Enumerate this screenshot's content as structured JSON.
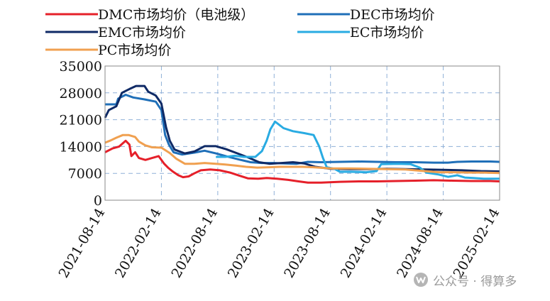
{
  "chart_data": {
    "type": "line",
    "title": "",
    "xlabel": "",
    "ylabel": "",
    "ylim": [
      0,
      35000
    ],
    "yticks": [
      0,
      7000,
      14000,
      21000,
      28000,
      35000
    ],
    "x_tick_labels": [
      "2021-08-14",
      "2022-02-14",
      "2022-08-14",
      "2023-02-14",
      "2023-08-14",
      "2024-02-14",
      "2024-08-14",
      "2025-02-14"
    ],
    "x_range_months": [
      0,
      42
    ],
    "x_unit": "months since 2021-08-14",
    "grid": true,
    "series": [
      {
        "name": "DMC市场均价（电池级）",
        "color": "#e5202a",
        "points": [
          [
            0,
            12500
          ],
          [
            0.8,
            13500
          ],
          [
            1.5,
            14000
          ],
          [
            2.2,
            15500
          ],
          [
            2.6,
            14500
          ],
          [
            2.8,
            11500
          ],
          [
            3.2,
            12500
          ],
          [
            3.6,
            11000
          ],
          [
            4.3,
            10500
          ],
          [
            5,
            11000
          ],
          [
            5.7,
            11500
          ],
          [
            6.3,
            9500
          ],
          [
            6.7,
            8500
          ],
          [
            7.2,
            7500
          ],
          [
            7.8,
            6500
          ],
          [
            8.3,
            6000
          ],
          [
            8.9,
            6200
          ],
          [
            9.5,
            7000
          ],
          [
            10.2,
            7800
          ],
          [
            11.2,
            8000
          ],
          [
            12.2,
            7800
          ],
          [
            13.3,
            7200
          ],
          [
            14.3,
            6400
          ],
          [
            15.2,
            5700
          ],
          [
            16.3,
            5600
          ],
          [
            17.2,
            5800
          ],
          [
            18.3,
            5600
          ],
          [
            19.5,
            5300
          ],
          [
            20.6,
            4900
          ],
          [
            21.6,
            4600
          ],
          [
            23,
            4600
          ],
          [
            25,
            4800
          ],
          [
            27,
            4900
          ],
          [
            29,
            4900
          ],
          [
            31,
            5000
          ],
          [
            33,
            5100
          ],
          [
            35,
            5200
          ],
          [
            37,
            5100
          ],
          [
            39,
            5000
          ],
          [
            41,
            5000
          ],
          [
            42,
            4900
          ]
        ]
      },
      {
        "name": "DEC市场均价",
        "color": "#1f6fb8",
        "points": [
          [
            0,
            25000
          ],
          [
            1.2,
            25000
          ],
          [
            1.4,
            26500
          ],
          [
            2.2,
            27500
          ],
          [
            3,
            26800
          ],
          [
            4.2,
            26300
          ],
          [
            5.4,
            25700
          ],
          [
            6,
            23500
          ],
          [
            6.4,
            17000
          ],
          [
            6.8,
            14500
          ],
          [
            7.3,
            12500
          ],
          [
            8.2,
            11900
          ],
          [
            9.5,
            12400
          ],
          [
            10.6,
            12900
          ],
          [
            11.8,
            12200
          ],
          [
            13,
            11400
          ],
          [
            14.3,
            10600
          ],
          [
            15.5,
            9900
          ],
          [
            16.7,
            9700
          ],
          [
            18,
            9700
          ],
          [
            19.2,
            9600
          ],
          [
            20.4,
            9500
          ],
          [
            21.6,
            10000
          ],
          [
            23,
            9900
          ],
          [
            25,
            10000
          ],
          [
            27,
            10100
          ],
          [
            29,
            10000
          ],
          [
            31,
            9900
          ],
          [
            33,
            9900
          ],
          [
            35,
            9800
          ],
          [
            36.5,
            9800
          ],
          [
            37.5,
            10000
          ],
          [
            39,
            10100
          ],
          [
            41,
            10100
          ],
          [
            42,
            10000
          ]
        ]
      },
      {
        "name": "EMC市场均价",
        "color": "#0f2a66",
        "points": [
          [
            0,
            21500
          ],
          [
            0.4,
            23500
          ],
          [
            1.2,
            24500
          ],
          [
            1.8,
            28000
          ],
          [
            2.6,
            29000
          ],
          [
            3.3,
            29800
          ],
          [
            4.2,
            29800
          ],
          [
            4.6,
            28300
          ],
          [
            5.4,
            27300
          ],
          [
            6,
            25200
          ],
          [
            6.5,
            19000
          ],
          [
            6.9,
            15500
          ],
          [
            7.4,
            13200
          ],
          [
            8.5,
            12200
          ],
          [
            9.5,
            12700
          ],
          [
            10.6,
            14100
          ],
          [
            11.8,
            14100
          ],
          [
            12.9,
            13300
          ],
          [
            14.1,
            12200
          ],
          [
            15.3,
            11100
          ],
          [
            16.4,
            9900
          ],
          [
            17.5,
            9500
          ],
          [
            18.8,
            9700
          ],
          [
            20,
            9900
          ],
          [
            21.2,
            9600
          ],
          [
            22.4,
            8700
          ],
          [
            24,
            8200
          ],
          [
            26,
            8100
          ],
          [
            28,
            8100
          ],
          [
            30,
            8200
          ],
          [
            32,
            8100
          ],
          [
            34,
            8000
          ],
          [
            36,
            7900
          ],
          [
            38,
            7800
          ],
          [
            40,
            7600
          ],
          [
            42,
            7500
          ]
        ]
      },
      {
        "name": "EC市场均价",
        "color": "#29abe2",
        "points": [
          [
            11.8,
            11300
          ],
          [
            12.8,
            11300
          ],
          [
            13.8,
            11600
          ],
          [
            14.8,
            11300
          ],
          [
            16,
            11300
          ],
          [
            16.7,
            12800
          ],
          [
            17.2,
            15500
          ],
          [
            17.6,
            18500
          ],
          [
            18.1,
            20500
          ],
          [
            19,
            18800
          ],
          [
            20,
            18000
          ],
          [
            21.2,
            17500
          ],
          [
            22.2,
            17000
          ],
          [
            22.8,
            14000
          ],
          [
            23.2,
            11000
          ],
          [
            23.6,
            8600
          ],
          [
            24.4,
            8200
          ],
          [
            25,
            7400
          ],
          [
            26.2,
            7400
          ],
          [
            27.8,
            7300
          ],
          [
            28.9,
            7600
          ],
          [
            29.4,
            9400
          ],
          [
            31.2,
            9500
          ],
          [
            32.5,
            9400
          ],
          [
            33.5,
            8500
          ],
          [
            34.2,
            7200
          ],
          [
            35.5,
            6700
          ],
          [
            36.5,
            6100
          ],
          [
            37.5,
            6500
          ],
          [
            38.3,
            5900
          ],
          [
            39.2,
            5800
          ],
          [
            40.3,
            5600
          ],
          [
            42,
            5600
          ]
        ]
      },
      {
        "name": "PC市场均价",
        "color": "#f0a050",
        "points": [
          [
            0,
            15000
          ],
          [
            0.6,
            15600
          ],
          [
            1.2,
            16300
          ],
          [
            1.9,
            17000
          ],
          [
            2.5,
            17000
          ],
          [
            3.2,
            16500
          ],
          [
            3.6,
            15300
          ],
          [
            4.3,
            14300
          ],
          [
            5,
            13800
          ],
          [
            6,
            13700
          ],
          [
            6.9,
            12300
          ],
          [
            7.6,
            10800
          ],
          [
            8.5,
            9500
          ],
          [
            9.5,
            9500
          ],
          [
            10.6,
            9700
          ],
          [
            11.8,
            9500
          ],
          [
            12.8,
            9300
          ],
          [
            14,
            9000
          ],
          [
            15,
            8700
          ],
          [
            16.2,
            8500
          ],
          [
            17.4,
            8600
          ],
          [
            18.6,
            8700
          ],
          [
            19.8,
            8700
          ],
          [
            21,
            8700
          ],
          [
            22.2,
            8600
          ],
          [
            24,
            8300
          ],
          [
            26,
            8300
          ],
          [
            28,
            8200
          ],
          [
            30,
            8100
          ],
          [
            32,
            8000
          ],
          [
            34,
            7600
          ],
          [
            35.5,
            7300
          ],
          [
            37,
            7300
          ],
          [
            39,
            7200
          ],
          [
            40.3,
            7200
          ],
          [
            42,
            7100
          ]
        ]
      }
    ]
  },
  "watermark": {
    "icon": "wechat-channel-icon",
    "text": "公众号 · 得算多"
  }
}
